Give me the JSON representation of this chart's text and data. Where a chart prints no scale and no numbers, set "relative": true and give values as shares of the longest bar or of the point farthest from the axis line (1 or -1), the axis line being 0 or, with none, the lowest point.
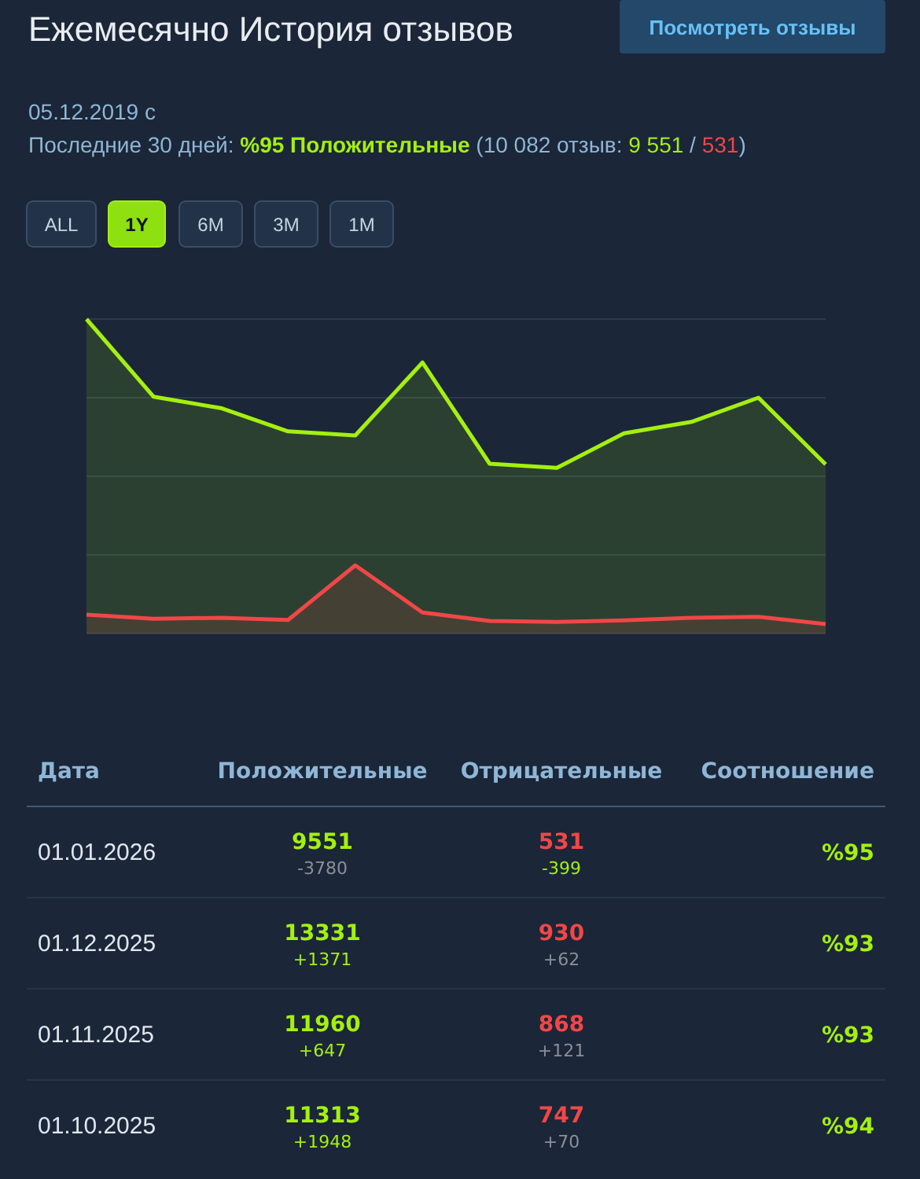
{
  "chart_data": [
    {
      "type": "area",
      "title": "Ежемесячно История отзывов",
      "subtitle": "05.12.2019 с",
      "relative": true,
      "grid": true,
      "annotations": [
        "Последние 30 дней: ",
        "%95 Положительные",
        " (10 082 отзыв: ",
        "9 551",
        " / ",
        "531",
        ")",
        "ALL",
        "1Y",
        "6M",
        "3M",
        "1M",
        "Посмотреть отзывы"
      ],
      "categories": [
        null,
        null,
        null,
        null,
        null,
        null,
        null,
        null,
        null,
        null,
        null,
        null
      ],
      "series": [
        {
          "color": "#a4f00f",
          "values": [
            1,
            0.753,
            0.717,
            0.643,
            0.63,
            0.862,
            0.54,
            0.527,
            0.637,
            0.673,
            0.75,
            0.538
          ]
        },
        {
          "color": "#f04747",
          "values": [
            0.06,
            0.047,
            0.05,
            0.043,
            0.217,
            0.067,
            0.04,
            0.037,
            0.042,
            0.05,
            0.053,
            0.03
          ]
        }
      ]
    },
    {
      "type": "other",
      "xlabel": "Дата",
      "data_labels": true,
      "categories": [
        "01.01.2026",
        "01.12.2025",
        "01.11.2025",
        "01.10.2025"
      ],
      "series": [
        {
          "name": "Положительные",
          "colors": [
            "#a4f00f",
            "#a4f00f",
            "#a4f00f",
            "#a4f00f"
          ],
          "values": [
            9551,
            13331,
            11960,
            11313
          ]
        },
        {
          "colors": [
            "#8a8f98",
            "#a4f00f",
            "#a4f00f",
            "#a4f00f"
          ],
          "values": [
            -3780,
            1371,
            647,
            1948
          ],
          "value_labels": [
            "-3780",
            "+1371",
            "+647",
            "+1948"
          ]
        },
        {
          "name": "Отрицательные",
          "colors": [
            "#f04747",
            "#f04747",
            "#f04747",
            "#f04747"
          ],
          "values": [
            531,
            930,
            868,
            747
          ]
        },
        {
          "colors": [
            "#a4f00f",
            "#8a8f98",
            "#8a8f98",
            "#8a8f98"
          ],
          "values": [
            -399,
            62,
            121,
            70
          ],
          "value_labels": [
            "-399",
            "+62",
            "+121",
            "+70"
          ]
        },
        {
          "name": "Соотношение",
          "colors": [
            "#a4f00f",
            "#a4f00f",
            "#a4f00f",
            "#a4f00f"
          ],
          "values": [
            95,
            93,
            93,
            94
          ],
          "value_labels": [
            "%95",
            "%93",
            "%93",
            "%94"
          ]
        }
      ]
    }
  ]
}
